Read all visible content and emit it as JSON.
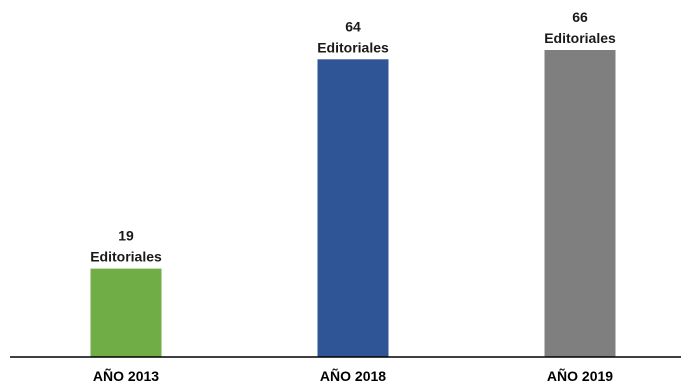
{
  "chart_data": {
    "type": "bar",
    "categories": [
      "AÑO 2013",
      "AÑO 2018",
      "AÑO 2019"
    ],
    "values": [
      19,
      64,
      66
    ],
    "value_unit_label": "Editoriales",
    "colors": [
      "#70ad47",
      "#2f5597",
      "#7f7f7f"
    ],
    "axis_color": "#000000",
    "title": "",
    "xlabel": "",
    "ylabel": "",
    "ylim": [
      0,
      66
    ],
    "grid": false,
    "legend": "none"
  }
}
